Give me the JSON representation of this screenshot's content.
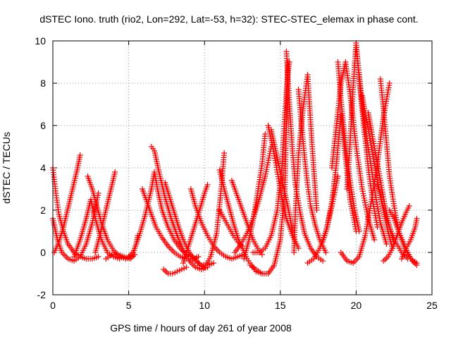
{
  "chart_data": {
    "type": "scatter",
    "title": "dSTEC Iono. truth (rio2, Lon=292, Lat=-53, h=32): STEC-STEC_elemax in phase cont.",
    "xlabel": "GPS time / hours of day 261 of year 2008",
    "ylabel": "dSTEC  / TECUs",
    "xlim": [
      0,
      25
    ],
    "ylim": [
      -2,
      10
    ],
    "xticks": [
      0,
      5,
      10,
      15,
      20,
      25
    ],
    "yticks": [
      -2,
      0,
      2,
      4,
      6,
      8,
      10
    ],
    "grid": true,
    "marker": "+",
    "color": "#ff0000",
    "series": [
      {
        "x": [
          0.0,
          0.2,
          0.4,
          0.7,
          1.0,
          1.4,
          1.8,
          2.2,
          2.6,
          3.0
        ],
        "y": [
          4.0,
          2.8,
          1.8,
          1.0,
          0.4,
          0.0,
          -0.2,
          -0.3,
          -0.3,
          -0.2
        ]
      },
      {
        "x": [
          0.0,
          0.3,
          0.6,
          1.0,
          1.4,
          1.8,
          2.2,
          2.6,
          3.0
        ],
        "y": [
          1.6,
          0.6,
          0.0,
          -0.3,
          -0.4,
          -0.2,
          0.4,
          1.4,
          2.8
        ]
      },
      {
        "x": [
          0.1,
          0.4,
          0.7,
          1.0,
          1.3,
          1.6,
          1.8
        ],
        "y": [
          0.0,
          0.5,
          1.2,
          2.1,
          3.0,
          3.9,
          4.6
        ]
      },
      {
        "x": [
          1.4,
          1.8,
          2.2,
          2.5,
          2.8,
          3.2,
          3.6,
          4.0,
          4.4
        ],
        "y": [
          -0.2,
          0.6,
          1.6,
          2.5,
          1.6,
          0.6,
          0.0,
          -0.2,
          -0.3
        ]
      },
      {
        "x": [
          2.3,
          2.6,
          2.9,
          3.2,
          3.6,
          4.0,
          4.4,
          4.8,
          5.2
        ],
        "y": [
          3.6,
          3.0,
          2.2,
          1.4,
          0.6,
          0.1,
          -0.2,
          -0.3,
          -0.2
        ]
      },
      {
        "x": [
          2.8,
          3.1,
          3.4,
          3.7,
          3.9,
          4.1
        ],
        "y": [
          0.0,
          0.8,
          1.7,
          2.6,
          3.2,
          3.8
        ]
      },
      {
        "x": [
          3.5,
          3.9,
          4.3,
          4.7,
          5.1,
          5.4
        ],
        "y": [
          -0.3,
          -0.1,
          -0.1,
          -0.2,
          -0.3,
          -0.1
        ]
      },
      {
        "x": [
          5.0,
          5.3,
          5.5,
          5.6
        ],
        "y": [
          -0.2,
          0.0,
          0.4,
          0.8
        ]
      },
      {
        "x": [
          5.3,
          5.7,
          6.1,
          6.5,
          6.7,
          6.9,
          7.2,
          7.6,
          8.0,
          8.4,
          8.8,
          9.2
        ],
        "y": [
          0.0,
          0.8,
          1.8,
          3.0,
          3.8,
          3.0,
          2.0,
          1.2,
          0.6,
          0.2,
          -0.1,
          -0.2
        ]
      },
      {
        "x": [
          6.5,
          6.7,
          7.0,
          7.4,
          7.8,
          8.2,
          8.6,
          9.0,
          9.4,
          9.8,
          10.2
        ],
        "y": [
          5.0,
          4.8,
          3.8,
          2.6,
          1.6,
          0.8,
          0.1,
          -0.4,
          -0.7,
          -0.8,
          -0.7
        ]
      },
      {
        "x": [
          5.9,
          6.2,
          6.5,
          6.8,
          7.2,
          7.6,
          8.0,
          8.4,
          8.8,
          9.2,
          9.6
        ],
        "y": [
          3.0,
          2.4,
          1.8,
          1.2,
          0.7,
          0.3,
          0.0,
          -0.2,
          -0.3,
          -0.3,
          -0.2
        ]
      },
      {
        "x": [
          7.4,
          7.7,
          8.0,
          8.3,
          8.6,
          9.0,
          9.4,
          9.8,
          10.2,
          10.6
        ],
        "y": [
          3.3,
          2.6,
          1.9,
          1.2,
          0.6,
          0.0,
          -0.4,
          -0.6,
          -0.6,
          -0.5
        ]
      },
      {
        "x": [
          7.3,
          7.6,
          7.9,
          8.2,
          8.5,
          8.8
        ],
        "y": [
          -0.8,
          -1.0,
          -1.0,
          -0.9,
          -0.8,
          -0.7
        ]
      },
      {
        "x": [
          8.6,
          8.9,
          9.2,
          9.5,
          9.8,
          10.0,
          10.2
        ],
        "y": [
          -0.5,
          0.2,
          0.9,
          1.6,
          2.3,
          2.8,
          3.2
        ]
      },
      {
        "x": [
          9.1,
          9.4,
          9.8,
          10.2,
          10.6,
          11.0,
          11.4,
          11.8,
          12.2,
          12.6
        ],
        "y": [
          3.0,
          2.2,
          1.4,
          0.8,
          0.3,
          0.0,
          -0.2,
          -0.3,
          -0.2,
          -0.1
        ]
      },
      {
        "x": [
          9.4,
          9.7,
          10.0,
          10.4,
          10.8,
          11.1,
          11.3
        ],
        "y": [
          -0.3,
          -0.6,
          -0.7,
          -0.2,
          0.9,
          3.0,
          4.7
        ]
      },
      {
        "x": [
          11.0,
          11.3,
          11.6,
          11.9,
          12.2,
          12.5,
          12.8,
          13.1,
          13.4,
          13.8
        ],
        "y": [
          3.9,
          3.0,
          2.2,
          1.4,
          0.7,
          0.2,
          -0.3,
          -0.6,
          -0.9,
          -1.0
        ]
      },
      {
        "x": [
          11.0,
          11.3,
          11.6,
          11.9,
          12.2,
          12.5
        ],
        "y": [
          2.0,
          1.6,
          1.2,
          0.8,
          0.5,
          0.3
        ]
      },
      {
        "x": [
          11.8,
          12.0,
          12.3,
          12.6,
          12.9,
          13.2,
          13.5,
          13.8
        ],
        "y": [
          3.4,
          3.0,
          2.4,
          1.8,
          1.2,
          0.6,
          0.2,
          -0.1
        ]
      },
      {
        "x": [
          12.0,
          12.4,
          12.8,
          13.2,
          13.6,
          14.0,
          14.4
        ],
        "y": [
          0.0,
          0.4,
          0.9,
          1.6,
          2.5,
          3.6,
          5.0
        ]
      },
      {
        "x": [
          12.6,
          12.9,
          13.2,
          13.5,
          13.8,
          14.0
        ],
        "y": [
          -0.3,
          0.5,
          1.5,
          2.8,
          4.2,
          5.6
        ]
      },
      {
        "x": [
          13.0,
          13.4,
          13.8,
          14.2,
          14.6,
          15.0,
          15.3,
          15.5
        ],
        "y": [
          -0.6,
          -0.8,
          -1.0,
          -1.0,
          -0.6,
          0.6,
          3.0,
          9.0
        ]
      },
      {
        "x": [
          13.2,
          13.6,
          14.0,
          14.4,
          14.8,
          15.1,
          15.3,
          15.5,
          15.6
        ],
        "y": [
          0.0,
          0.0,
          0.2,
          0.8,
          2.0,
          4.0,
          6.5,
          8.5,
          9.0
        ]
      },
      {
        "x": [
          14.2,
          14.5,
          14.8,
          15.1,
          15.4,
          15.8,
          16.2
        ],
        "y": [
          6.0,
          5.0,
          3.8,
          2.6,
          1.6,
          0.8,
          0.2
        ]
      },
      {
        "x": [
          14.4,
          14.7,
          15.0,
          15.3,
          15.6,
          15.8
        ],
        "y": [
          5.8,
          4.8,
          3.8,
          2.8,
          1.8,
          1.0
        ]
      },
      {
        "x": [
          15.4,
          15.6,
          15.8,
          16.0,
          16.3,
          16.6,
          17.0,
          17.4,
          17.8
        ],
        "y": [
          9.5,
          7.0,
          4.8,
          3.2,
          1.9,
          0.9,
          0.2,
          -0.2,
          -0.4
        ]
      },
      {
        "x": [
          15.9,
          16.0,
          16.2,
          16.5,
          16.8,
          17.1,
          17.4
        ],
        "y": [
          0.0,
          2.0,
          4.6,
          6.8,
          8.4,
          5.0,
          2.0
        ]
      },
      {
        "x": [
          16.2,
          16.4,
          16.6,
          16.8,
          17.0,
          17.3,
          17.6,
          18.0
        ],
        "y": [
          7.7,
          6.0,
          4.5,
          3.2,
          2.2,
          1.3,
          0.6,
          0.0
        ]
      },
      {
        "x": [
          16.8,
          17.2,
          17.6,
          18.0,
          18.4,
          18.8
        ],
        "y": [
          -0.5,
          -0.3,
          0.2,
          1.0,
          2.2,
          3.6
        ]
      },
      {
        "x": [
          17.8,
          18.1,
          18.4,
          18.7,
          19.0,
          19.3,
          19.6,
          20.0
        ],
        "y": [
          0.5,
          1.2,
          2.4,
          4.2,
          6.5,
          4.5,
          2.5,
          1.0
        ]
      },
      {
        "x": [
          18.4,
          18.7,
          19.0,
          19.3,
          19.6,
          20.0,
          20.4,
          20.8,
          21.2
        ],
        "y": [
          4.0,
          6.0,
          8.0,
          9.0,
          7.5,
          5.0,
          3.0,
          1.6,
          0.6
        ]
      },
      {
        "x": [
          18.8,
          19.0,
          19.3,
          19.6,
          19.9,
          20.2
        ],
        "y": [
          9.0,
          7.2,
          5.0,
          3.4,
          2.0,
          1.0
        ]
      },
      {
        "x": [
          19.0,
          19.4,
          19.8,
          20.2,
          20.6,
          21.0,
          21.4,
          21.8,
          22.2
        ],
        "y": [
          0.0,
          -0.4,
          -0.5,
          -0.2,
          0.8,
          2.4,
          4.2,
          6.4,
          8.0
        ]
      },
      {
        "x": [
          19.4,
          19.6,
          19.8,
          20.0,
          20.2,
          20.5,
          20.8,
          21.1,
          21.4
        ],
        "y": [
          3.0,
          5.2,
          7.8,
          9.9,
          8.2,
          6.0,
          4.0,
          2.4,
          1.2
        ]
      },
      {
        "x": [
          20.0,
          20.2,
          20.4,
          20.7,
          21.0,
          21.3,
          21.6,
          22.0
        ],
        "y": [
          9.6,
          8.4,
          7.0,
          5.4,
          4.0,
          2.6,
          1.4,
          0.4
        ]
      },
      {
        "x": [
          20.4,
          20.6,
          20.9,
          21.2,
          21.5,
          21.8,
          22.1,
          22.4
        ],
        "y": [
          7.4,
          6.6,
          5.4,
          4.2,
          3.0,
          2.0,
          1.0,
          0.2
        ]
      },
      {
        "x": [
          20.8,
          21.0,
          21.3,
          21.6,
          21.9,
          22.2,
          22.5
        ],
        "y": [
          6.6,
          5.8,
          4.6,
          3.4,
          2.2,
          1.2,
          0.4
        ]
      },
      {
        "x": [
          21.6,
          21.8,
          22.0,
          22.2,
          22.5,
          22.8,
          23.2,
          23.6,
          24.0
        ],
        "y": [
          8.2,
          6.8,
          5.2,
          3.6,
          2.2,
          1.0,
          0.2,
          -0.3,
          -0.5
        ]
      },
      {
        "x": [
          21.4,
          21.7,
          22.0,
          22.3,
          22.6,
          23.0,
          23.4
        ],
        "y": [
          3.2,
          2.4,
          1.6,
          1.0,
          0.5,
          0.0,
          -0.3
        ]
      },
      {
        "x": [
          21.8,
          22.1,
          22.4,
          22.7,
          23.0,
          23.3,
          23.5
        ],
        "y": [
          -0.4,
          -0.2,
          0.2,
          0.8,
          1.4,
          1.9,
          2.2
        ]
      },
      {
        "x": [
          22.2,
          22.5,
          22.8,
          23.1,
          23.4,
          23.7,
          24.0
        ],
        "y": [
          2.0,
          1.6,
          1.0,
          0.5,
          0.0,
          -0.4,
          -0.6
        ]
      },
      {
        "x": [
          23.0,
          23.3,
          23.6,
          23.9,
          24.0
        ],
        "y": [
          -0.3,
          0.2,
          0.6,
          1.2,
          1.6
        ]
      }
    ]
  }
}
